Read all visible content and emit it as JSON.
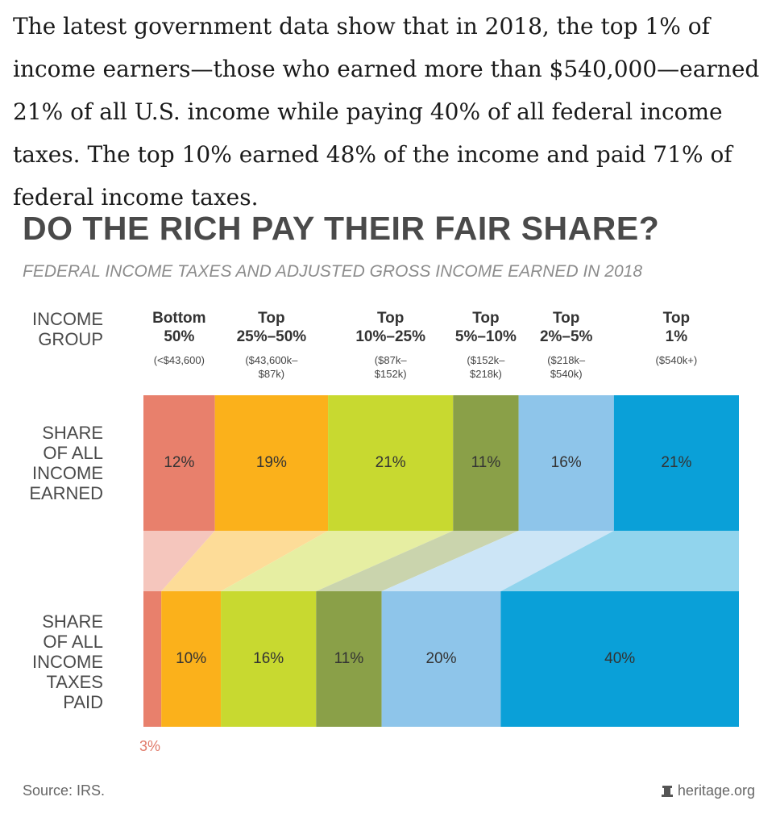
{
  "intro_text": "The latest government data show that in 2018, the top 1% of income earners—those who earned more than $540,000—earned 21% of all U.S. income while paying 40% of all federal income taxes. The top 10% earned 48% of the income and paid 71% of federal income taxes.",
  "colors": {
    "bottom50": "#e8806c",
    "top25_50": "#fbb11b",
    "top10_25": "#c8d930",
    "top5_10": "#8aa048",
    "top2_5": "#8ec5ea",
    "top1": "#0aa0d8"
  },
  "chart_data": {
    "type": "bar",
    "title": "DO THE RICH PAY THEIR FAIR SHARE?",
    "subtitle": "FEDERAL INCOME TAXES AND ADJUSTED GROSS INCOME EARNED IN 2018",
    "group_header_label": "INCOME\nGROUP",
    "categories": [
      "Bottom 50%",
      "Top 25%–50%",
      "Top 10%–25%",
      "Top 5%–10%",
      "Top 2%–5%",
      "Top 1%"
    ],
    "category_heads": [
      "Bottom\n50%",
      "Top\n25%–50%",
      "Top\n10%–25%",
      "Top\n5%–10%",
      "Top\n2%–5%",
      "Top\n1%"
    ],
    "category_ranges": [
      "(<$43,600)",
      "($43,600k–\n$87k)",
      "($87k–\n$152k)",
      "($152k–\n$218k)",
      "($218k–\n$540k)",
      "($540k+)"
    ],
    "series": [
      {
        "name": "SHARE\nOF ALL\nINCOME\nEARNED",
        "values": [
          12,
          19,
          21,
          11,
          16,
          21
        ],
        "labels": [
          "12%",
          "19%",
          "21%",
          "11%",
          "16%",
          "21%"
        ]
      },
      {
        "name": "SHARE\nOF ALL\nINCOME\nTAXES\nPAID",
        "values": [
          3,
          10,
          16,
          11,
          20,
          40
        ],
        "labels": [
          "3%",
          "10%",
          "16%",
          "11%",
          "20%",
          "40%"
        ]
      }
    ],
    "source": "Source: IRS.",
    "credit": "heritage.org"
  }
}
